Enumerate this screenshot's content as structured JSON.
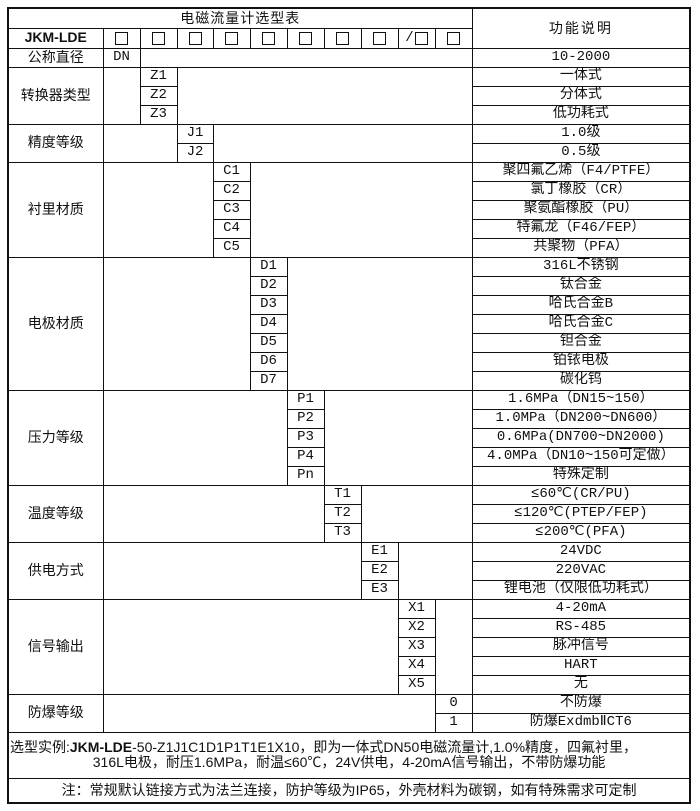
{
  "title": "电磁流量计选型表",
  "header": {
    "model": "JKM-LDE",
    "function_header": "功能说明",
    "slash": "/",
    "checkbox_count": 10,
    "slash_before_index": 8
  },
  "sections": [
    {
      "label": "公称直径",
      "code_col": 2,
      "rows": [
        {
          "code": "DN",
          "desc": "10-2000"
        }
      ]
    },
    {
      "label": "转换器类型",
      "code_col": 3,
      "rows": [
        {
          "code": "Z1",
          "desc": "一体式"
        },
        {
          "code": "Z2",
          "desc": "分体式"
        },
        {
          "code": "Z3",
          "desc": "低功耗式"
        }
      ]
    },
    {
      "label": "精度等级",
      "code_col": 4,
      "rows": [
        {
          "code": "J1",
          "desc": "1.0级"
        },
        {
          "code": "J2",
          "desc": "0.5级"
        }
      ]
    },
    {
      "label": "衬里材质",
      "code_col": 5,
      "rows": [
        {
          "code": "C1",
          "desc": "聚四氟乙烯（F4/PTFE）"
        },
        {
          "code": "C2",
          "desc": "氯丁橡胶（CR）"
        },
        {
          "code": "C3",
          "desc": "聚氨酯橡胶（PU）"
        },
        {
          "code": "C4",
          "desc": "特氟龙（F46/FEP）"
        },
        {
          "code": "C5",
          "desc": "共聚物（PFA）"
        }
      ]
    },
    {
      "label": "电极材质",
      "code_col": 6,
      "rows": [
        {
          "code": "D1",
          "desc": "316L不锈钢"
        },
        {
          "code": "D2",
          "desc": "钛合金"
        },
        {
          "code": "D3",
          "desc": "哈氏合金B"
        },
        {
          "code": "D4",
          "desc": "哈氏合金C"
        },
        {
          "code": "D5",
          "desc": "钽合金"
        },
        {
          "code": "D6",
          "desc": "铂铱电极"
        },
        {
          "code": "D7",
          "desc": "碳化钨"
        }
      ]
    },
    {
      "label": "压力等级",
      "code_col": 7,
      "rows": [
        {
          "code": "P1",
          "desc": "1.6MPa（DN15~150）"
        },
        {
          "code": "P2",
          "desc": "1.0MPa（DN200~DN600）"
        },
        {
          "code": "P3",
          "desc": "0.6MPa(DN700~DN2000)"
        },
        {
          "code": "P4",
          "desc": "4.0MPa（DN10~150可定做）"
        },
        {
          "code": "Pn",
          "desc": "特殊定制"
        }
      ]
    },
    {
      "label": "温度等级",
      "code_col": 8,
      "rows": [
        {
          "code": "T1",
          "desc": "≤60℃(CR/PU)"
        },
        {
          "code": "T2",
          "desc": "≤120℃(PTEP/FEP)"
        },
        {
          "code": "T3",
          "desc": "≤200℃(PFA)"
        }
      ]
    },
    {
      "label": "供电方式",
      "code_col": 9,
      "rows": [
        {
          "code": "E1",
          "desc": "24VDC"
        },
        {
          "code": "E2",
          "desc": "220VAC"
        },
        {
          "code": "E3",
          "desc": "锂电池（仅限低功耗式）"
        }
      ]
    },
    {
      "label": "信号输出",
      "code_col": 10,
      "rows": [
        {
          "code": "X1",
          "desc": "4-20mA"
        },
        {
          "code": "X2",
          "desc": "RS-485"
        },
        {
          "code": "X3",
          "desc": "脉冲信号"
        },
        {
          "code": "X4",
          "desc": "HART"
        },
        {
          "code": "X5",
          "desc": "无"
        }
      ]
    },
    {
      "label": "防爆等级",
      "code_col": 11,
      "rows": [
        {
          "code": "0",
          "desc": "不防爆"
        },
        {
          "code": "1",
          "desc": "防爆ExdmbⅡCT6"
        }
      ]
    }
  ],
  "footer": {
    "example": {
      "prefix": "选型实例:",
      "model": "JKM-LDE",
      "line1_rest": "-50-Z1J1C1D1P1T1E1X10，即为一体式DN50电磁流量计,1.0%精度，四氟衬里，",
      "line2": "316L电极，耐压1.6MPa，耐温≤60℃，24V供电，4-20mA信号输出，不带防爆功能"
    },
    "note": "注：常规默认链接方式为法兰连接，防护等级为IP65，外壳材料为碳钢，如有特殊需求可定制"
  }
}
